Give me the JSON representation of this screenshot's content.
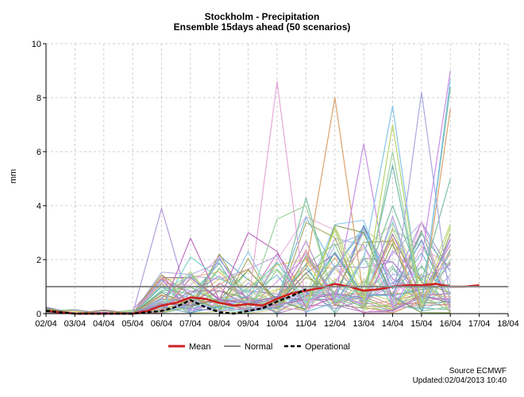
{
  "chart_data": {
    "type": "line",
    "title": "Stockholm - Precipitation",
    "subtitle": "Ensemble 15days ahead (50 scenarios)",
    "ylabel": "mm",
    "xlabel": "",
    "x": [
      "02/04",
      "03/04",
      "04/04",
      "05/04",
      "06/04",
      "07/04",
      "08/04",
      "09/04",
      "10/04",
      "11/04",
      "12/04",
      "13/04",
      "14/04",
      "15/04",
      "16/04",
      "17/04",
      "18/04"
    ],
    "ylim": [
      0,
      10
    ],
    "yticks": [
      0,
      2,
      4,
      6,
      8,
      10
    ],
    "grid": true,
    "legend_position": "bottom",
    "legend": [
      {
        "label": "Mean",
        "color": "#cc2222",
        "style": "solid"
      },
      {
        "label": "Normal",
        "color": "#888888",
        "style": "solid"
      },
      {
        "label": "Operational",
        "color": "#000000",
        "style": "dashed"
      }
    ],
    "series": [
      {
        "name": "Mean",
        "color": "#cc2222",
        "x": [
          0,
          0.5,
          1,
          1.5,
          2,
          2.5,
          3,
          3.5,
          4,
          4.5,
          5,
          5.5,
          6,
          6.5,
          7,
          7.5,
          8,
          8.5,
          9,
          9.5,
          10,
          10.5,
          11,
          11.5,
          12,
          12.5,
          13,
          13.5,
          14,
          14.5,
          15
        ],
        "values": [
          0.1,
          0.05,
          0,
          0,
          0,
          0,
          0,
          0.1,
          0.3,
          0.4,
          0.6,
          0.55,
          0.4,
          0.3,
          0.35,
          0.3,
          0.55,
          0.75,
          0.85,
          0.95,
          1.1,
          1.0,
          0.85,
          0.9,
          1.0,
          1.05,
          1.05,
          1.1,
          1.0,
          1.0,
          1.05
        ]
      },
      {
        "name": "Normal",
        "color": "#888888",
        "x": [
          0,
          16
        ],
        "values": [
          1.0,
          1.0
        ]
      },
      {
        "name": "Operational",
        "color": "#000000",
        "dashed": true,
        "x": [
          0,
          0.5,
          1,
          1.5,
          2,
          2.5,
          3,
          3.5,
          4,
          4.5,
          5,
          5.5,
          6,
          6.5,
          7,
          7.5,
          8,
          8.5,
          9
        ],
        "values": [
          0.1,
          0.05,
          0,
          0,
          0,
          0,
          0,
          0.05,
          0.1,
          0.25,
          0.5,
          0.25,
          0.05,
          0,
          0.1,
          0.2,
          0.45,
          0.65,
          0.9
        ]
      }
    ],
    "ensemble": {
      "count": 50,
      "colors": [
        "#7fd6c7",
        "#b39ddb",
        "#c8c87a",
        "#9fd29f",
        "#e6a8d7",
        "#8fb3e6",
        "#b5d66b",
        "#d9a36b",
        "#6bb3d9",
        "#a9a9e0",
        "#c98fe6",
        "#7ec97e",
        "#e0c060",
        "#6fb7a8",
        "#d48a8a",
        "#9a8fd4",
        "#86c5e8",
        "#c0d090",
        "#b07fc0",
        "#80c0a0",
        "#9a6fb0",
        "#7a9a4a",
        "#c070c0",
        "#5aa0c0",
        "#a0a050"
      ],
      "highlights": [
        {
          "x": [
            3,
            4,
            5,
            6,
            7,
            8,
            9,
            10,
            11,
            12,
            13,
            14
          ],
          "values": [
            0,
            3.9,
            0.2,
            0.1,
            0.2,
            0.3,
            0.5,
            0.8,
            0.3,
            3.6,
            0.4,
            1.9
          ]
        },
        {
          "x": [
            7,
            8,
            9,
            10,
            11,
            12,
            13,
            14
          ],
          "values": [
            0.3,
            8.6,
            0.3,
            1.2,
            2.5,
            0.4,
            3.4,
            0.1
          ]
        },
        {
          "x": [
            8,
            9,
            10,
            11,
            12,
            13,
            14
          ],
          "values": [
            0.4,
            1.7,
            8.0,
            0.6,
            2.8,
            0.2,
            7.6
          ]
        },
        {
          "x": [
            10,
            11,
            12,
            13,
            14
          ],
          "values": [
            0.5,
            6.3,
            0.2,
            2.0,
            9.0
          ]
        },
        {
          "x": [
            11,
            12,
            13,
            14
          ],
          "values": [
            0.6,
            5.5,
            0.3,
            8.4
          ]
        },
        {
          "x": [
            10,
            11,
            12,
            13,
            14
          ],
          "values": [
            0.4,
            2.0,
            7.7,
            0.2,
            8.7
          ]
        },
        {
          "x": [
            8,
            9,
            10,
            11,
            12,
            13,
            14
          ],
          "values": [
            0.2,
            4.3,
            0.4,
            1.0,
            4.0,
            1.2,
            5.0
          ]
        },
        {
          "x": [
            4,
            5,
            6,
            7,
            8,
            9,
            10
          ],
          "values": [
            0.1,
            2.8,
            0.5,
            3.0,
            2.3,
            0.2,
            0.6
          ]
        },
        {
          "x": [
            4,
            5,
            6,
            7,
            8,
            9,
            10
          ],
          "values": [
            0.2,
            2.1,
            1.3,
            0.8,
            1.9,
            0.4,
            1.2
          ]
        },
        {
          "x": [
            7,
            8,
            9,
            10,
            11,
            12,
            13,
            14
          ],
          "values": [
            0.3,
            3.5,
            4.0,
            0.5,
            0.3,
            6.0,
            0.3,
            2.0
          ]
        },
        {
          "x": [
            9,
            10,
            11,
            12,
            13,
            14
          ],
          "values": [
            0.2,
            3.2,
            0.5,
            7.0,
            0.3,
            3.2
          ]
        },
        {
          "x": [
            12,
            13,
            14
          ],
          "values": [
            0.3,
            8.2,
            0.4
          ]
        }
      ]
    }
  },
  "legend": {
    "mean": "Mean",
    "normal": "Normal",
    "operational": "Operational"
  },
  "footer": {
    "source": "Source ECMWF",
    "updated": "Updated:02/04/2013 10:40"
  }
}
